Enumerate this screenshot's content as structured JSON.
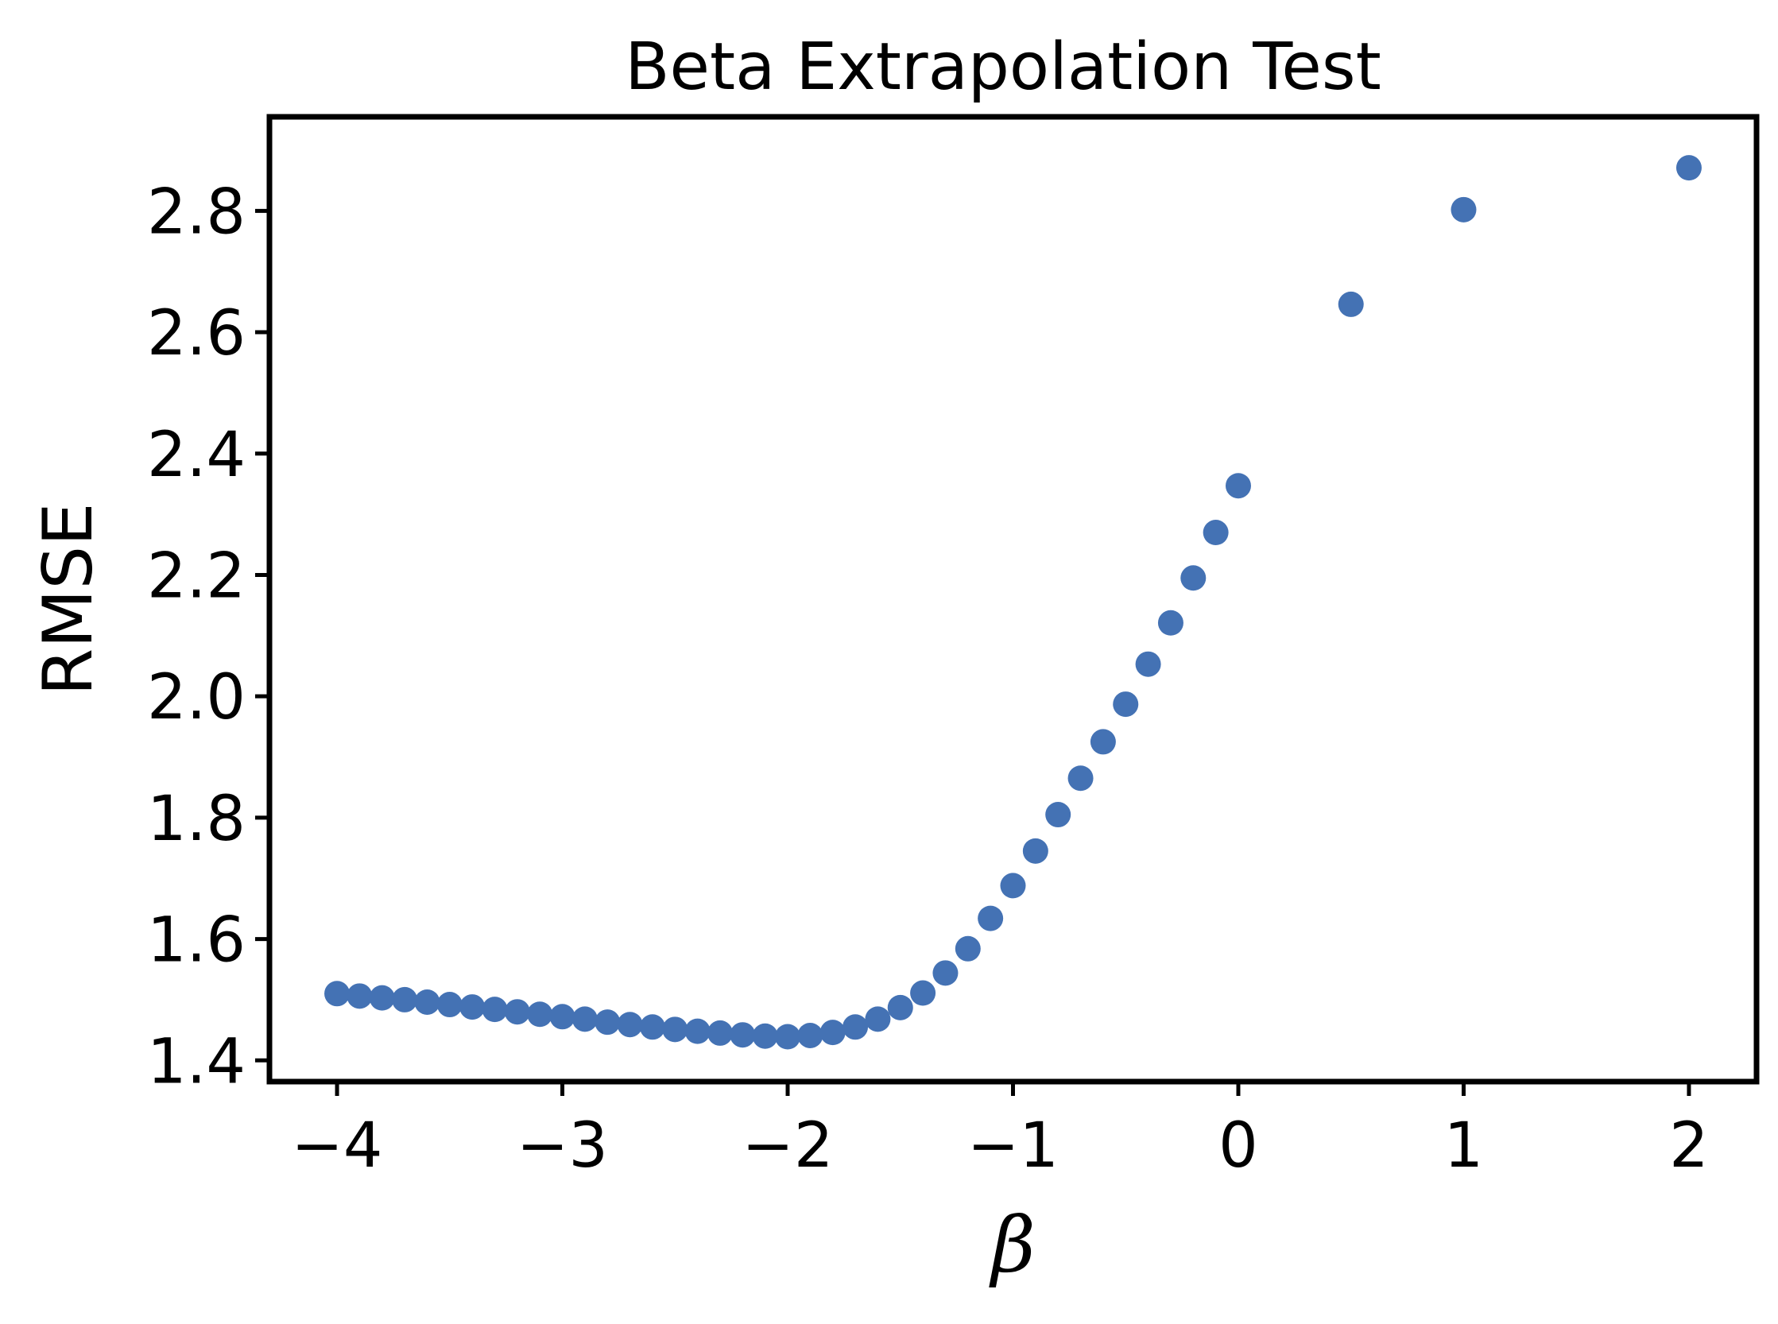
{
  "chart_data": {
    "type": "scatter",
    "title": "Beta Extrapolation Test",
    "xlabel": "β",
    "ylabel": "RMSE",
    "xlim": [
      -4.3,
      2.3
    ],
    "ylim": [
      1.365,
      2.955
    ],
    "x_ticks": [
      -4,
      -3,
      -2,
      -1,
      0,
      1,
      2
    ],
    "x_tick_labels": [
      "−4",
      "−3",
      "−2",
      "−1",
      "0",
      "1",
      "2"
    ],
    "y_ticks": [
      1.4,
      1.6,
      1.8,
      2.0,
      2.2,
      2.4,
      2.6,
      2.8
    ],
    "y_tick_labels": [
      "1.4",
      "1.6",
      "1.8",
      "2.0",
      "2.2",
      "2.4",
      "2.6",
      "2.8"
    ],
    "grid": false,
    "marker_color": "#4472b4",
    "series": [
      {
        "x": [
          -4.0,
          -3.9,
          -3.8,
          -3.7,
          -3.6,
          -3.5,
          -3.4,
          -3.3,
          -3.2,
          -3.1,
          -3.0,
          -2.9,
          -2.8,
          -2.7,
          -2.6,
          -2.5,
          -2.4,
          -2.3,
          -2.2,
          -2.1,
          -2.0,
          -1.9,
          -1.8,
          -1.7,
          -1.6,
          -1.5,
          -1.4,
          -1.3,
          -1.2,
          -1.1,
          -1.0,
          -0.9,
          -0.8,
          -0.7,
          -0.6,
          -0.5,
          -0.4,
          -0.3,
          -0.2,
          -0.1,
          0.0,
          0.5,
          1.0,
          2.0
        ],
        "y": [
          1.51,
          1.506,
          1.503,
          1.5,
          1.496,
          1.492,
          1.488,
          1.484,
          1.48,
          1.476,
          1.472,
          1.468,
          1.463,
          1.459,
          1.455,
          1.451,
          1.448,
          1.445,
          1.442,
          1.44,
          1.439,
          1.441,
          1.446,
          1.455,
          1.468,
          1.487,
          1.511,
          1.544,
          1.584,
          1.634,
          1.688,
          1.745,
          1.805,
          1.865,
          1.925,
          1.987,
          2.053,
          2.121,
          2.195,
          2.27,
          2.347,
          2.646,
          2.802,
          2.871
        ]
      }
    ]
  }
}
